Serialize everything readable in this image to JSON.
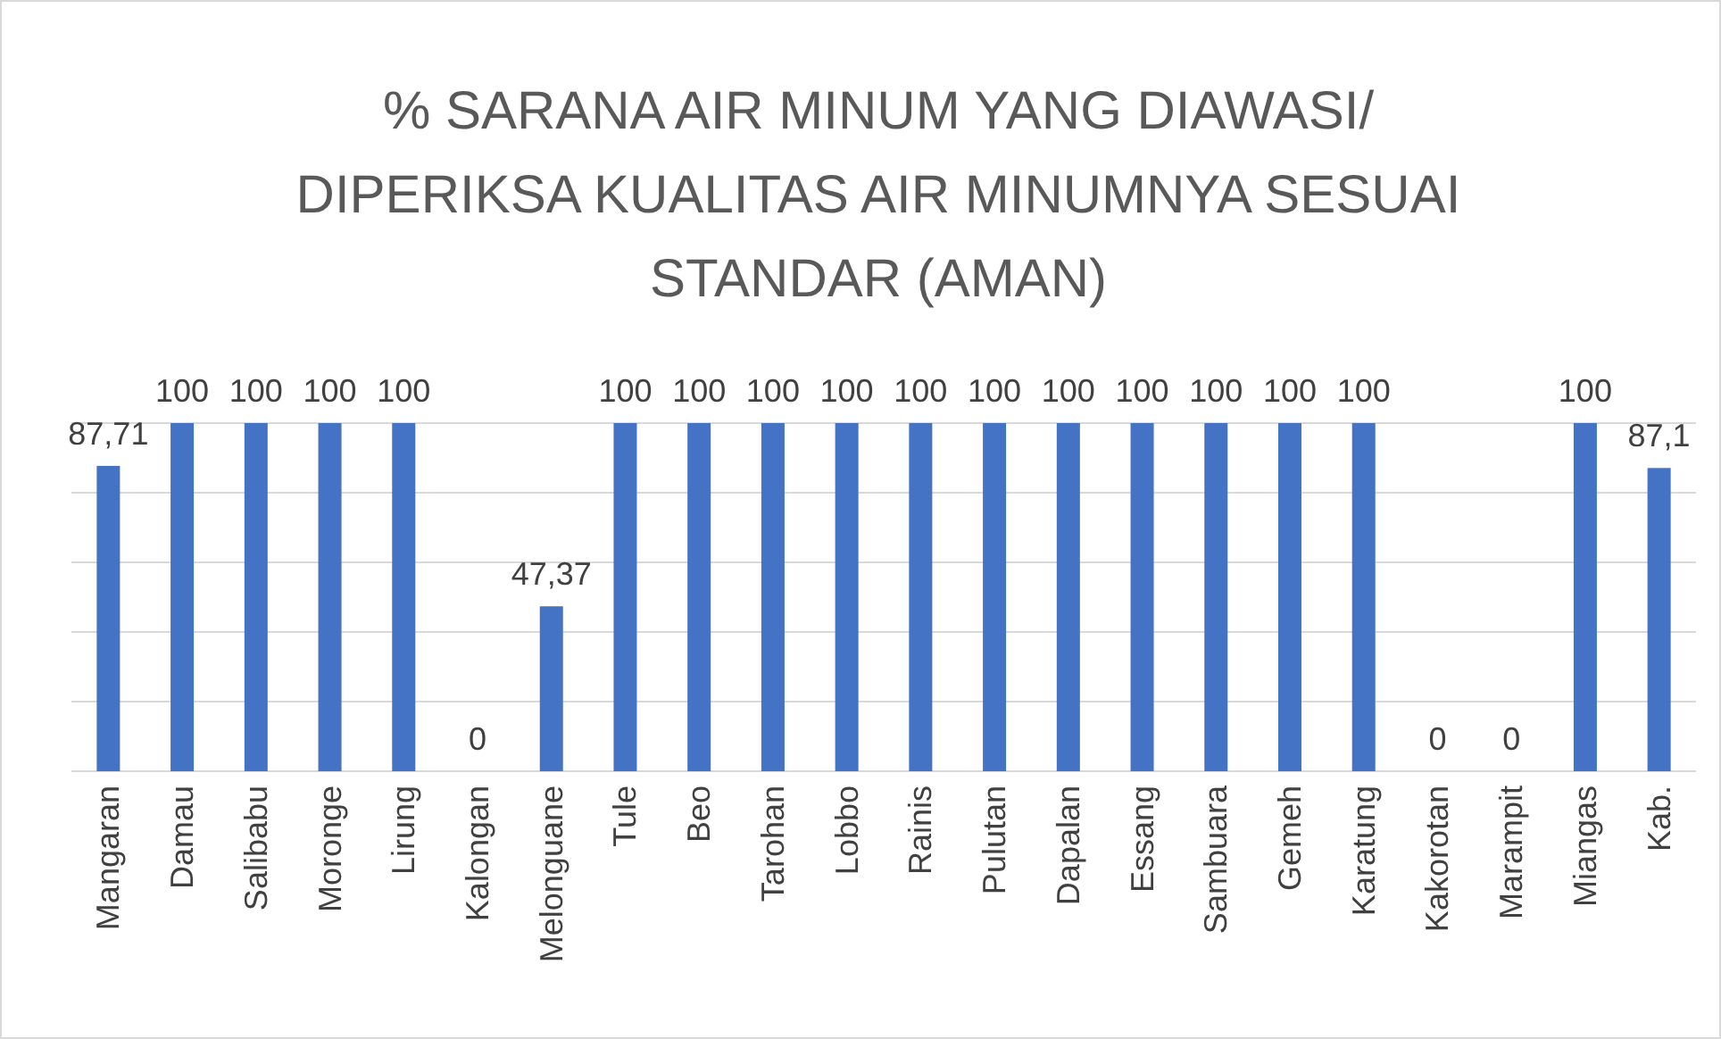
{
  "chart_data": {
    "type": "bar",
    "title": "% SARANA AIR MINUM YANG DIAWASI/ DIPERIKSA KUALITAS AIR MINUMNYA SESUAI STANDAR (AMAN)",
    "categories": [
      "Mangaran",
      "Damau",
      "Salibabu",
      "Moronge",
      "Lirung",
      "Kalongan",
      "Melonguane",
      "Tule",
      "Beo",
      "Tarohan",
      "Lobbo",
      "Rainis",
      "Pulutan",
      "Dapalan",
      "Essang",
      "Sambuara",
      "Gemeh",
      "Karatung",
      "Kakorotan",
      "Marampit",
      "Miangas",
      "Kab."
    ],
    "values": [
      87.71,
      100,
      100,
      100,
      100,
      0,
      47.37,
      100,
      100,
      100,
      100,
      100,
      100,
      100,
      100,
      100,
      100,
      100,
      0,
      0,
      100,
      87.1
    ],
    "value_labels": [
      "87,71",
      "100",
      "100",
      "100",
      "100",
      "0",
      "47,37",
      "100",
      "100",
      "100",
      "100",
      "100",
      "100",
      "100",
      "100",
      "100",
      "100",
      "100",
      "0",
      "0",
      "100",
      "87,1"
    ],
    "color": "#4472c4",
    "ylim": [
      0,
      100
    ],
    "yticks": [
      {
        "value": 0,
        "label": null
      },
      {
        "value": 20,
        "label": null
      },
      {
        "value": 40,
        "label": null
      },
      {
        "value": 60,
        "label": null
      },
      {
        "value": 80,
        "label": null
      },
      {
        "value": 100,
        "label": null
      }
    ],
    "grid": "y",
    "tick_labels": "x"
  }
}
